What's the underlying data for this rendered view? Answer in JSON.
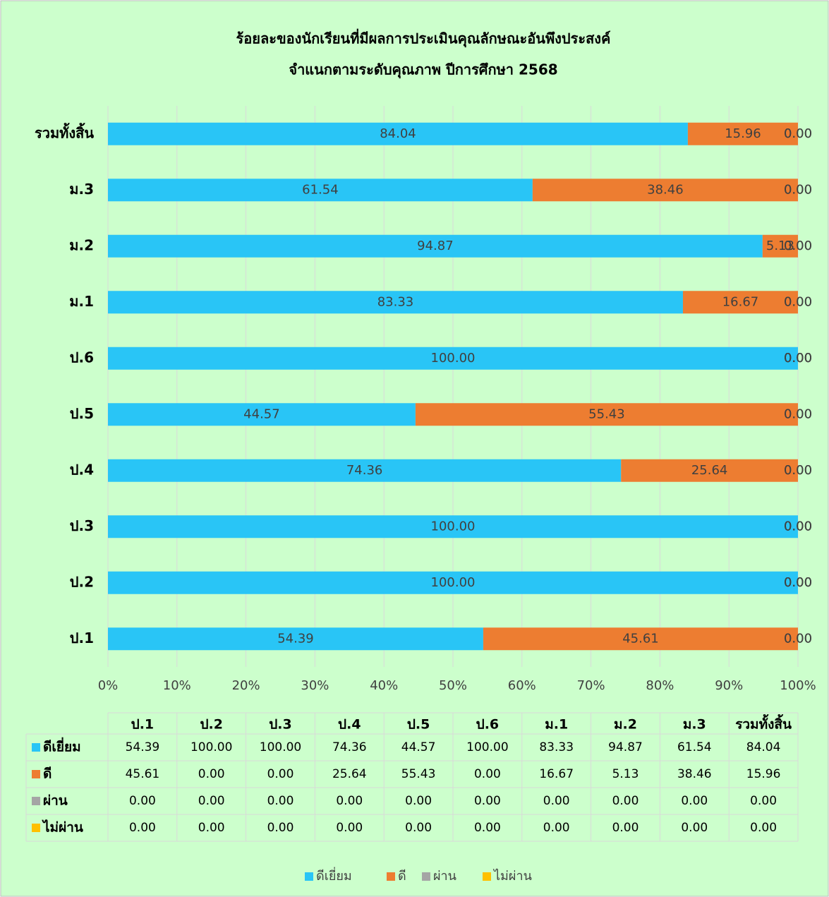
{
  "chart_data": {
    "type": "stacked_barh",
    "title": [
      "ร้อยละของนักเรียนที่มีผลการประเมินคุณลักษณะอันพึงประสงค์",
      "จำแนกตามระดับคุณภาพ  ปีการศึกษา 2568"
    ],
    "categories": [
      "ป.1",
      "ป.2",
      "ป.3",
      "ป.4",
      "ป.5",
      "ป.6",
      "ม.1",
      "ม.2",
      "ม.3",
      "รวมทั้งสิ้น"
    ],
    "series": [
      {
        "name": "ดีเยี่ยม",
        "color": "#29c5f6",
        "values": [
          54.39,
          100,
          100,
          74.36,
          44.57,
          100,
          83.33,
          94.87,
          61.54,
          84.04
        ],
        "value_labels": [
          "54.39",
          "100.00",
          "100.00",
          "74.36",
          "44.57",
          "100.00",
          "83.33",
          "94.87",
          "61.54",
          "84.04"
        ]
      },
      {
        "name": "ดี",
        "color": "#ed7d31",
        "values": [
          45.61,
          0,
          0,
          25.64,
          55.43,
          0,
          16.67,
          5.13,
          38.46,
          15.96
        ],
        "value_labels": [
          "45.61",
          "0.00",
          "0.00",
          "25.64",
          "55.43",
          "0.00",
          "16.67",
          "5.13",
          "38.46",
          "15.96"
        ]
      },
      {
        "name": "ผ่าน",
        "color": "#a5a5a5",
        "values": [
          0,
          0,
          0,
          0,
          0,
          0,
          0,
          0,
          0,
          0
        ],
        "value_labels": [
          "0.00",
          "0.00",
          "0.00",
          "0.00",
          "0.00",
          "0.00",
          "0.00",
          "0.00",
          "0.00",
          "0.00"
        ]
      },
      {
        "name": "ไม่ผ่าน",
        "color": "#ffc000",
        "values": [
          0,
          0,
          0,
          0,
          0,
          0,
          0,
          0,
          0,
          0
        ],
        "value_labels": [
          "0.00",
          "0.00",
          "0.00",
          "0.00",
          "0.00",
          "0.00",
          "0.00",
          "0.00",
          "0.00",
          "0.00"
        ]
      }
    ],
    "xlim": [
      0,
      100
    ],
    "xticks": [
      {
        "value": 0,
        "label": "0%"
      },
      {
        "value": 10,
        "label": "10%"
      },
      {
        "value": 20,
        "label": "20%"
      },
      {
        "value": 30,
        "label": "30%"
      },
      {
        "value": 40,
        "label": "40%"
      },
      {
        "value": 50,
        "label": "50%"
      },
      {
        "value": 60,
        "label": "60%"
      },
      {
        "value": 70,
        "label": "70%"
      },
      {
        "value": 80,
        "label": "80%"
      },
      {
        "value": 90,
        "label": "90%"
      },
      {
        "value": 100,
        "label": "100%"
      }
    ],
    "grid": true,
    "legend": "bottom",
    "data_table": true
  }
}
